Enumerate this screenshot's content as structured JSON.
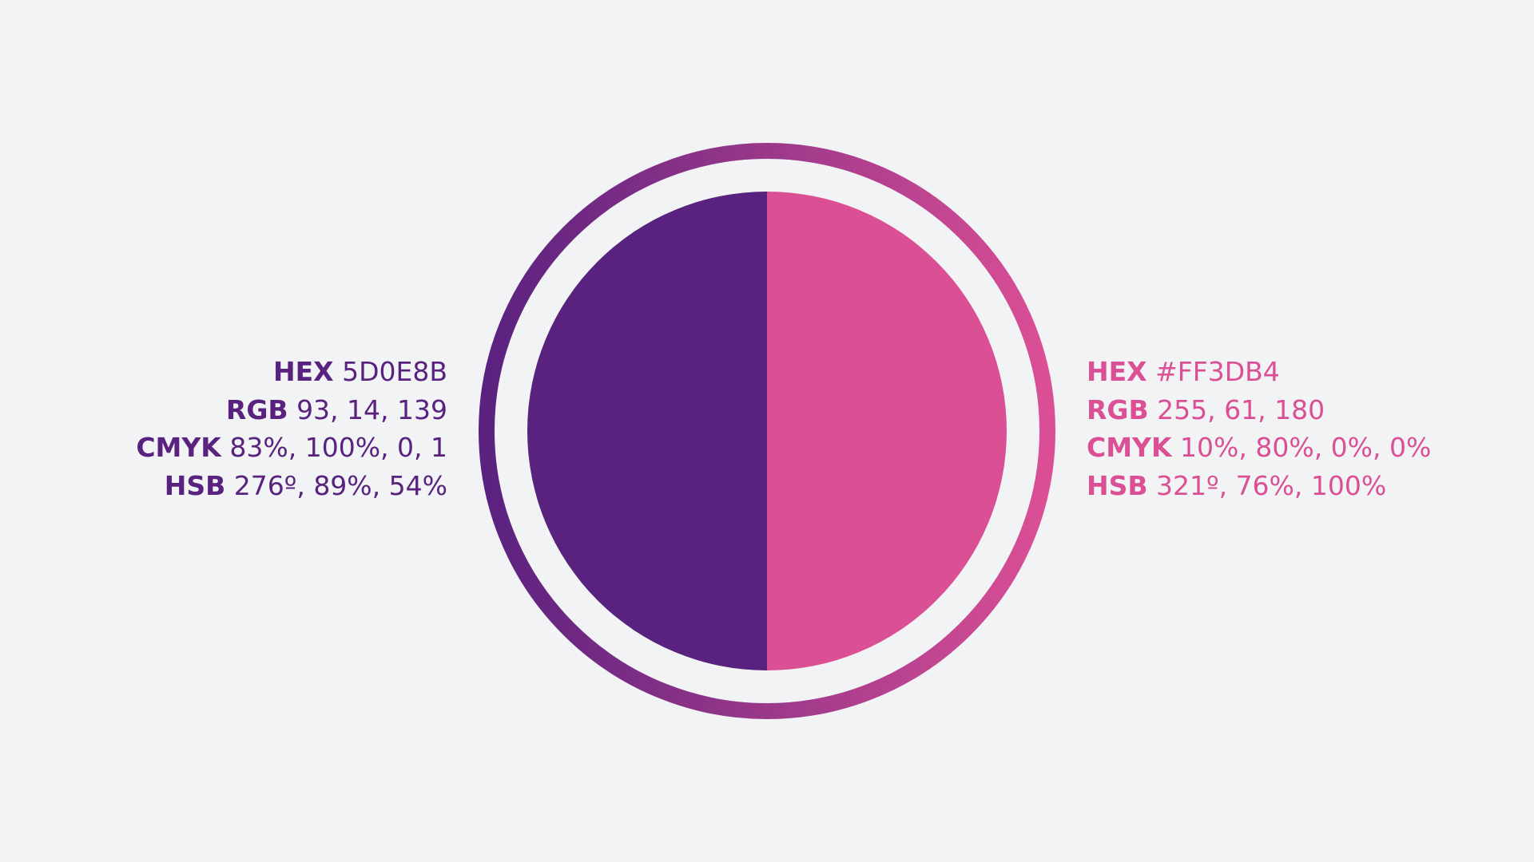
{
  "colors": {
    "background": "#F2F3F5",
    "left_fill": "#58227E",
    "right_fill": "#DB4F95",
    "ring_start": "#5A217F",
    "ring_end": "#DB4F95"
  },
  "left_specs": {
    "color": "#58227E",
    "rows": [
      {
        "label": "HEX",
        "value": "5D0E8B"
      },
      {
        "label": "RGB",
        "value": "93, 14, 139"
      },
      {
        "label": "CMYK",
        "value": "83%, 100%, 0, 1"
      },
      {
        "label": "HSB",
        "value": "276º, 89%, 54%"
      }
    ]
  },
  "right_specs": {
    "color": "#DB4F95",
    "rows": [
      {
        "label": "HEX",
        "value": "#FF3DB4"
      },
      {
        "label": "RGB",
        "value": "255, 61, 180"
      },
      {
        "label": "CMYK",
        "value": "10%, 80%, 0%, 0%"
      },
      {
        "label": "HSB",
        "value": "321º, 76%, 100%"
      }
    ]
  }
}
